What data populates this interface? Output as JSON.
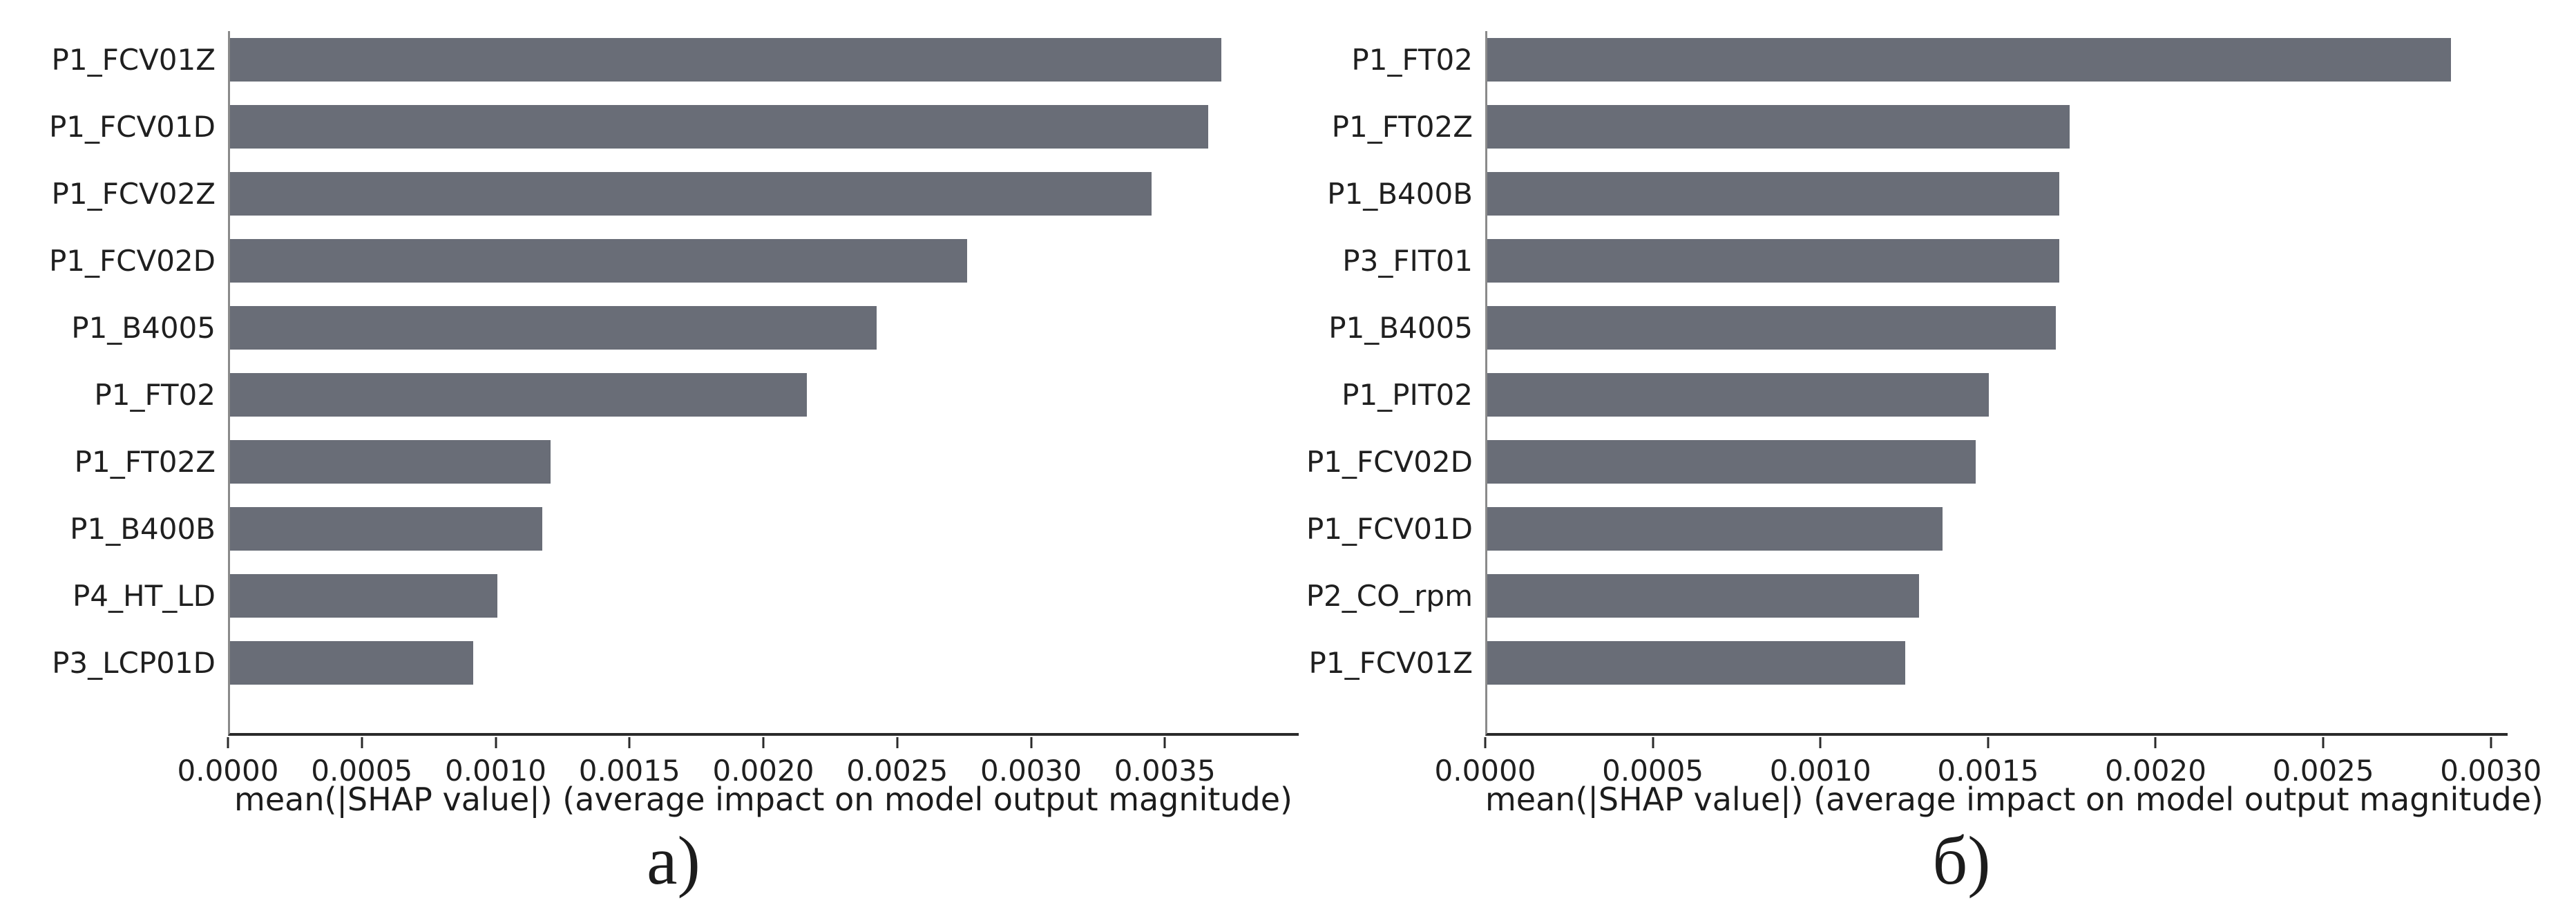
{
  "figure": {
    "background": "#ffffff",
    "bar_color": "#696d77",
    "axis_line_color": "#2a2a2a",
    "left_spine_color": "#8a8a8a",
    "text_color": "#1f1f1f"
  },
  "chart_data": [
    {
      "type": "bar",
      "orientation": "horizontal",
      "caption": "а)",
      "xlabel": "mean(|SHAP value|) (average impact on model output magnitude)",
      "categories": [
        "P1_FCV01Z",
        "P1_FCV01D",
        "P1_FCV02Z",
        "P1_FCV02D",
        "P1_B4005",
        "P1_FT02",
        "P1_FT02Z",
        "P1_B400B",
        "P4_HT_LD",
        "P3_LCP01D"
      ],
      "values": [
        0.00371,
        0.00366,
        0.00345,
        0.00276,
        0.00242,
        0.00216,
        0.0012,
        0.00117,
        0.001,
        0.00091
      ],
      "xlim": [
        0,
        0.004
      ],
      "xticks": [
        0.0,
        0.0005,
        0.001,
        0.0015,
        0.002,
        0.0025,
        0.003,
        0.0035
      ],
      "xtick_labels": [
        "0.0000",
        "0.0005",
        "0.0010",
        "0.0015",
        "0.0020",
        "0.0025",
        "0.0030",
        "0.0035"
      ],
      "grid": false,
      "legend": null
    },
    {
      "type": "bar",
      "orientation": "horizontal",
      "caption": "б)",
      "xlabel": "mean(|SHAP value|) (average impact on model output magnitude)",
      "categories": [
        "P1_FT02",
        "P1_FT02Z",
        "P1_B400B",
        "P3_FIT01",
        "P1_B4005",
        "P1_PIT02",
        "P1_FCV02D",
        "P1_FCV01D",
        "P2_CO_rpm",
        "P1_FCV01Z"
      ],
      "values": [
        0.00288,
        0.00174,
        0.00171,
        0.00171,
        0.0017,
        0.0015,
        0.00146,
        0.00136,
        0.00129,
        0.00125
      ],
      "xlim": [
        0,
        0.00305
      ],
      "xticks": [
        0.0,
        0.0005,
        0.001,
        0.0015,
        0.002,
        0.0025,
        0.003
      ],
      "xtick_labels": [
        "0.0000",
        "0.0005",
        "0.0010",
        "0.0015",
        "0.0020",
        "0.0025",
        "0.0030"
      ],
      "grid": false,
      "legend": null
    }
  ]
}
